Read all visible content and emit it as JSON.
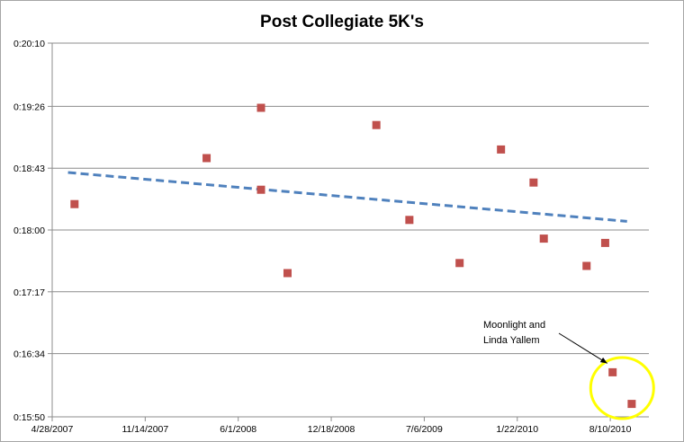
{
  "chart_data": {
    "type": "scatter",
    "title": "Post Collegiate 5K's",
    "xlabel": "",
    "ylabel": "",
    "x_tick_labels": [
      "4/28/2007",
      "11/14/2007",
      "6/1/2008",
      "12/18/2008",
      "7/6/2009",
      "1/22/2010",
      "8/10/2010"
    ],
    "xlim": [
      "4/28/2007",
      "11/1/2010"
    ],
    "y_tick_labels": [
      "0:15:50",
      "0:16:34",
      "0:17:17",
      "0:18:00",
      "0:18:43",
      "0:19:26",
      "0:20:10"
    ],
    "ylim": [
      "0:15:50",
      "0:20:10"
    ],
    "grid": "horizontal",
    "legend": "none",
    "series": [
      {
        "marker_color": "#c0504d",
        "points": [
          {
            "x": "6/15/2007",
            "y": "0:18:18"
          },
          {
            "x": "3/25/2008",
            "y": "0:18:50"
          },
          {
            "x": "7/20/2008",
            "y": "0:19:25"
          },
          {
            "x": "7/20/2008",
            "y": "0:18:28"
          },
          {
            "x": "9/15/2008",
            "y": "0:17:30"
          },
          {
            "x": "3/25/2009",
            "y": "0:19:13"
          },
          {
            "x": "6/4/2009",
            "y": "0:18:07"
          },
          {
            "x": "9/20/2009",
            "y": "0:17:37"
          },
          {
            "x": "12/18/2009",
            "y": "0:18:56"
          },
          {
            "x": "2/26/2010",
            "y": "0:18:33"
          },
          {
            "x": "3/20/2010",
            "y": "0:17:54"
          },
          {
            "x": "6/20/2010",
            "y": "0:17:35"
          },
          {
            "x": "7/30/2010",
            "y": "0:17:51"
          },
          {
            "x": "8/15/2010",
            "y": "0:16:21"
          },
          {
            "x": "9/25/2010",
            "y": "0:15:59"
          }
        ]
      }
    ],
    "trendline": {
      "style": "dashed",
      "color": "#4f81bd",
      "start": {
        "x": "6/1/2007",
        "y": "0:18:40"
      },
      "end": {
        "x": "9/15/2010",
        "y": "0:18:06"
      }
    },
    "annotation": {
      "text_lines": [
        "Moonlight and",
        "Linda Yallem"
      ],
      "highlight_color": "#ffff00"
    }
  }
}
